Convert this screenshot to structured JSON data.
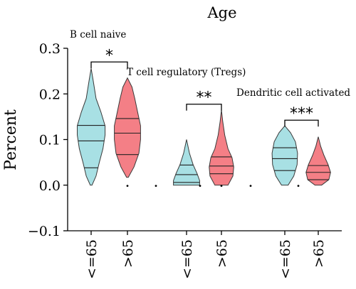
{
  "chart_data": {
    "type": "violin",
    "title": "Age",
    "ylabel": "Percent",
    "ylim": [
      -0.1,
      0.3
    ],
    "yticks": [
      -0.1,
      0.0,
      0.1,
      0.2,
      0.3
    ],
    "ytick_labels": [
      "−0.1",
      "0.0",
      "0.1",
      "0.2",
      "0.3"
    ],
    "xtick_labels": [
      "<=65",
      ">65",
      "<=65",
      ">65",
      "<=65",
      ">65"
    ],
    "colors": {
      "<=65": "#a8e0e4",
      ">65": "#f47f86"
    },
    "groups": [
      {
        "name": "B cell naive",
        "significance": "*",
        "violins": [
          {
            "label": "<=65",
            "min": 0.0,
            "q1": 0.038,
            "median": 0.097,
            "q3": 0.131,
            "max": 0.256,
            "profile": [
              [
                0.0,
                0.005
              ],
              [
                0.02,
                0.03
              ],
              [
                0.05,
                0.05
              ],
              [
                0.08,
                0.072
              ],
              [
                0.11,
                0.085
              ],
              [
                0.13,
                0.085
              ],
              [
                0.16,
                0.06
              ],
              [
                0.19,
                0.03
              ],
              [
                0.23,
                0.012
              ],
              [
                0.256,
                0.0
              ]
            ]
          },
          {
            "label": ">65",
            "min": 0.017,
            "q1": 0.067,
            "median": 0.114,
            "q3": 0.146,
            "max": 0.235,
            "outliers": [
              0.0
            ],
            "profile": [
              [
                0.017,
                0.005
              ],
              [
                0.04,
                0.04
              ],
              [
                0.07,
                0.07
              ],
              [
                0.1,
                0.08
              ],
              [
                0.13,
                0.08
              ],
              [
                0.16,
                0.062
              ],
              [
                0.19,
                0.045
              ],
              [
                0.215,
                0.028
              ],
              [
                0.235,
                0.0
              ]
            ]
          }
        ]
      },
      {
        "name": "T cell regulatory (Tregs)",
        "significance": "**",
        "violins": [
          {
            "label": "<=65",
            "min": 0.0,
            "q1": 0.006,
            "median": 0.023,
            "q3": 0.044,
            "max": 0.1,
            "outliers": [
              0.0
            ],
            "profile": [
              [
                0.0,
                0.08
              ],
              [
                0.01,
                0.08
              ],
              [
                0.025,
                0.065
              ],
              [
                0.045,
                0.04
              ],
              [
                0.07,
                0.018
              ],
              [
                0.1,
                0.0
              ]
            ]
          },
          {
            "label": ">65",
            "min": 0.0,
            "q1": 0.025,
            "median": 0.042,
            "q3": 0.062,
            "max": 0.165,
            "outliers": [
              0.0
            ],
            "profile": [
              [
                0.0,
                0.04
              ],
              [
                0.02,
                0.07
              ],
              [
                0.04,
                0.075
              ],
              [
                0.06,
                0.065
              ],
              [
                0.08,
                0.04
              ],
              [
                0.11,
                0.02
              ],
              [
                0.14,
                0.008
              ],
              [
                0.165,
                0.0
              ]
            ]
          }
        ]
      },
      {
        "name": "Dendritic cell activated",
        "significance": "***",
        "violins": [
          {
            "label": "<=65",
            "min": 0.0,
            "q1": 0.032,
            "median": 0.058,
            "q3": 0.082,
            "max": 0.13,
            "outliers": [
              0.0
            ],
            "profile": [
              [
                0.0,
                0.02
              ],
              [
                0.02,
                0.055
              ],
              [
                0.045,
                0.075
              ],
              [
                0.07,
                0.078
              ],
              [
                0.095,
                0.065
              ],
              [
                0.115,
                0.035
              ],
              [
                0.13,
                0.0
              ]
            ]
          },
          {
            "label": ">65",
            "min": 0.0,
            "q1": 0.012,
            "median": 0.028,
            "q3": 0.043,
            "max": 0.106,
            "profile": [
              [
                0.0,
                0.02
              ],
              [
                0.012,
                0.065
              ],
              [
                0.028,
                0.075
              ],
              [
                0.045,
                0.06
              ],
              [
                0.065,
                0.035
              ],
              [
                0.085,
                0.015
              ],
              [
                0.106,
                0.0
              ]
            ]
          }
        ]
      }
    ]
  }
}
